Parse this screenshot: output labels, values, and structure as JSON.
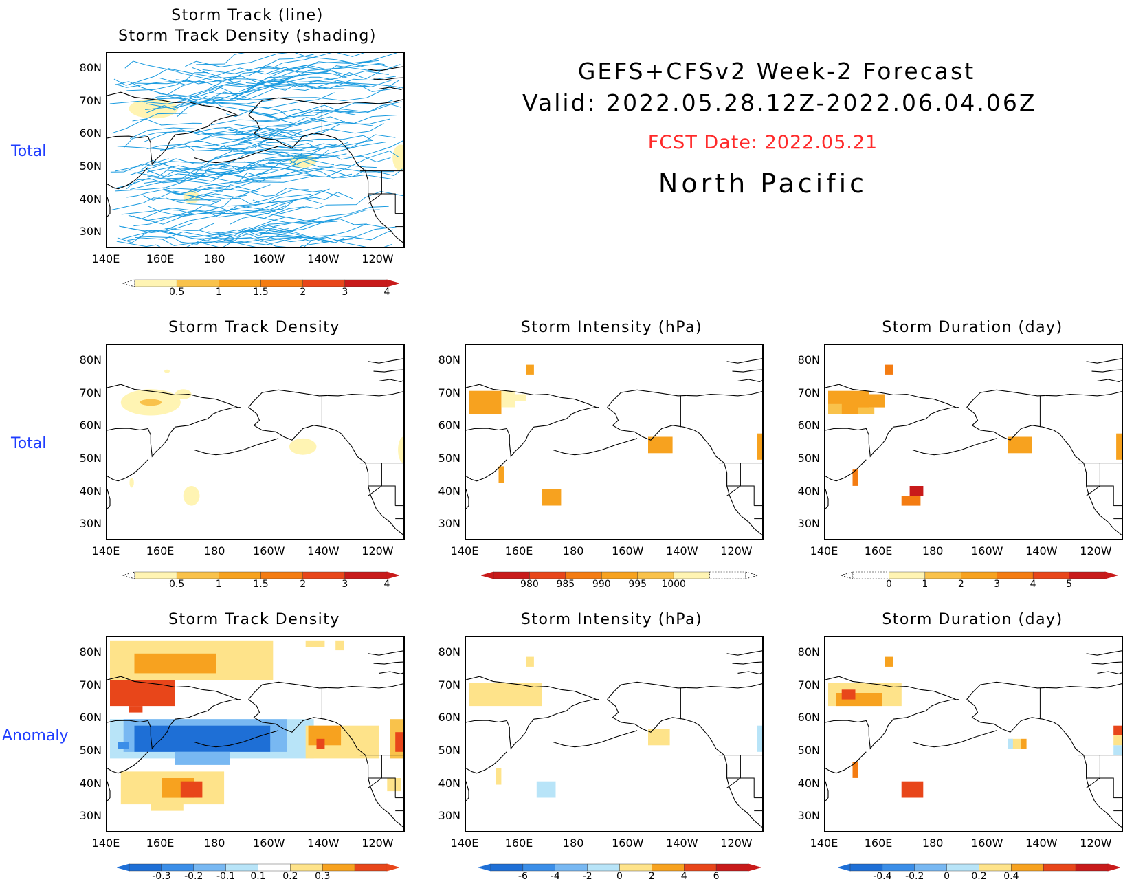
{
  "header": {
    "title_line1": "GEFS+CFSv2 Week-2 Forecast",
    "title_line2": "Valid: 2022.05.28.12Z-2022.06.04.06Z",
    "fcst_date": "FCST Date: 2022.05.21",
    "region": "North Pacific"
  },
  "row_labels": {
    "row1": "Total",
    "row2": "Total",
    "row3": "Anomaly"
  },
  "axes": {
    "lat_ticks": [
      "80N",
      "70N",
      "60N",
      "50N",
      "40N",
      "30N"
    ],
    "lon_ticks": [
      "140E",
      "160E",
      "180",
      "160W",
      "140W",
      "120W"
    ]
  },
  "panels": {
    "p1": {
      "title_line1": "Storm Track (line)",
      "title_line2": "Storm Track Density (shading)"
    },
    "p2": {
      "title": "Storm Track Density"
    },
    "p3": {
      "title": "Storm Intensity (hPa)"
    },
    "p4": {
      "title": "Storm Duration (day)"
    },
    "p5": {
      "title": "Storm Track Density"
    },
    "p6": {
      "title": "Storm Intensity (hPa)"
    },
    "p7": {
      "title": "Storm Duration (day)"
    }
  },
  "colorbars": {
    "density_total": [
      "0.5",
      "1",
      "1.5",
      "2",
      "3",
      "4"
    ],
    "intensity_total": [
      "980",
      "985",
      "990",
      "995",
      "1000"
    ],
    "duration_total": [
      "0",
      "1",
      "2",
      "3",
      "4",
      "5"
    ],
    "density_anom": [
      "-0.3",
      "-0.2",
      "-0.1",
      "0.1",
      "0.2",
      "0.3"
    ],
    "intensity_anom": [
      "-6",
      "-4",
      "-2",
      "0",
      "2",
      "4",
      "6"
    ],
    "duration_anom": [
      "-0.4",
      "-0.2",
      "0",
      "0.2",
      "0.4"
    ]
  },
  "palette": {
    "warm": [
      "#fff4b3",
      "#fee38a",
      "#f9c24b",
      "#f7a21f",
      "#f47c12",
      "#e8461a",
      "#c81a1a"
    ],
    "cool": [
      "#1e6fd6",
      "#3b8ee8",
      "#78b8f2",
      "#b8e4f8"
    ],
    "track_line": "#1a9be0"
  }
}
